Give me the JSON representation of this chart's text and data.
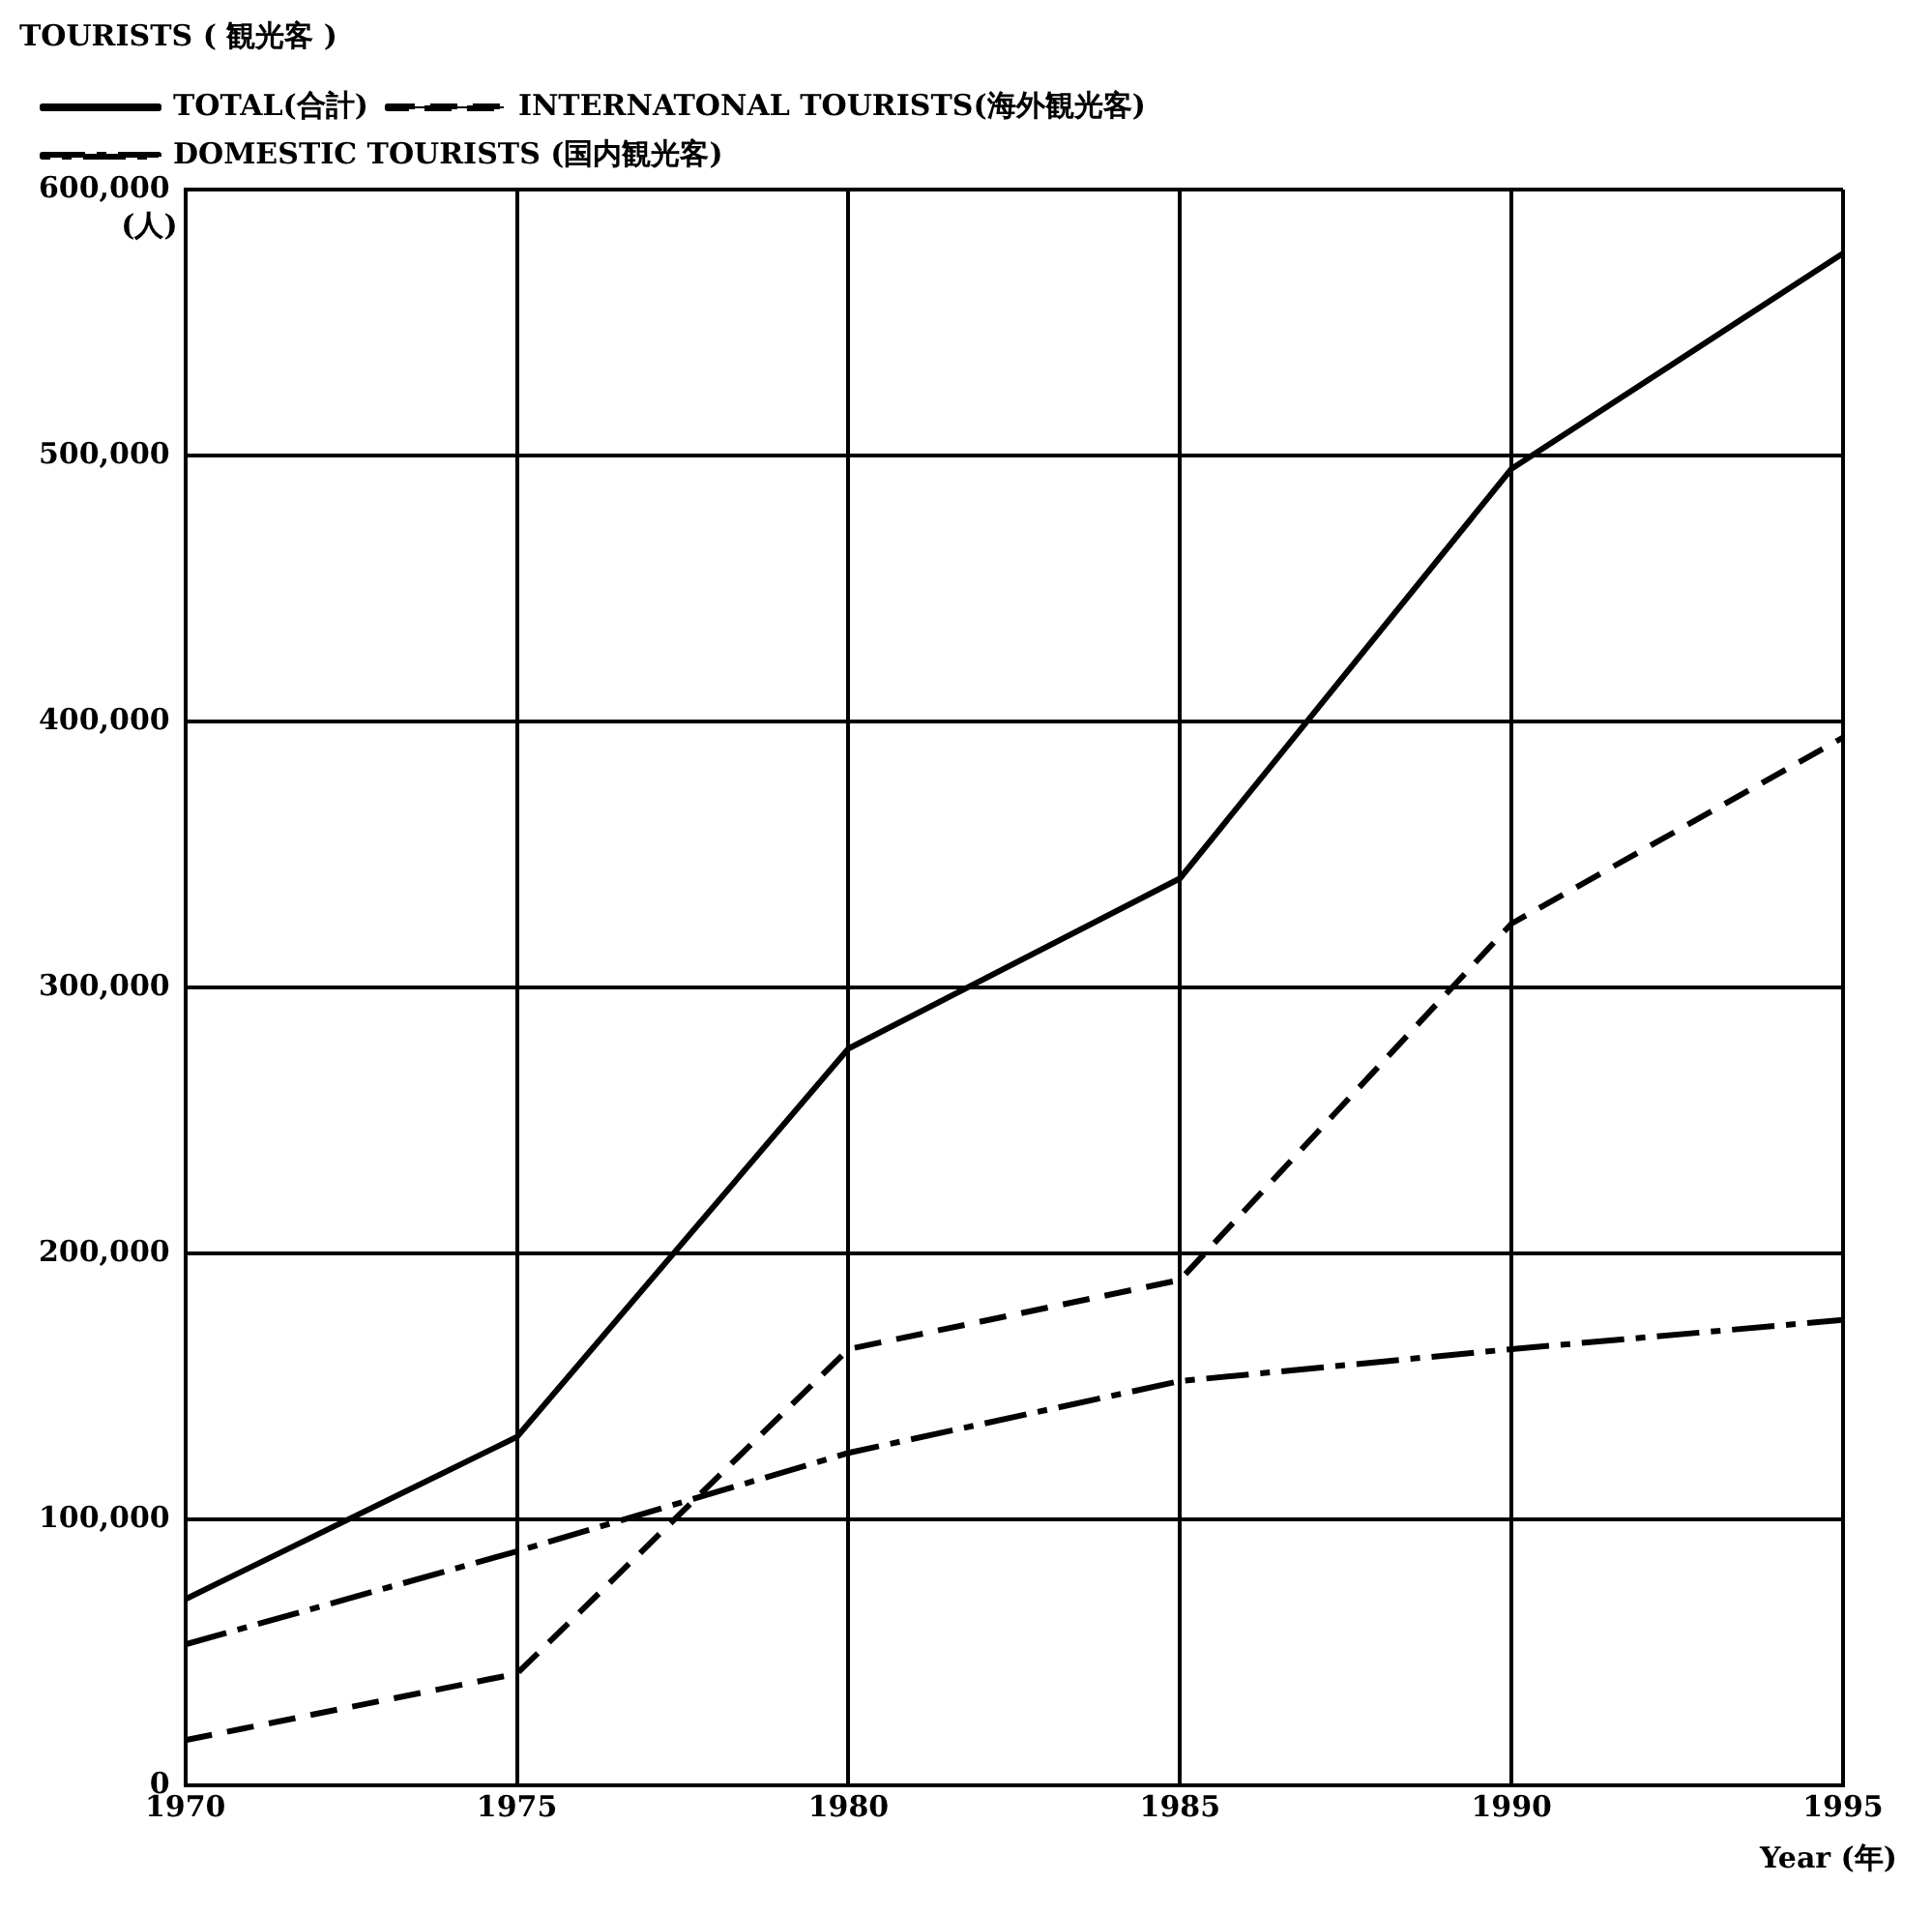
{
  "chart_data": {
    "type": "line",
    "ylabel": "TOURISTS ( 観光客 )",
    "xlabel": "Year (年)",
    "annotations": [
      "(人)"
    ],
    "x": [
      1970,
      1975,
      1980,
      1985,
      1990,
      1995
    ],
    "series": [
      {
        "name": "TOTAL(合計)",
        "color": "#000000",
        "line_style": "solid",
        "values": [
          70000,
          131000,
          277000,
          341000,
          495000,
          576000
        ]
      },
      {
        "name": "INTERNATONAL TOURISTS(海外観光客)",
        "color": "#000000",
        "line_style": "dashed",
        "values": [
          17000,
          42000,
          164000,
          190000,
          324000,
          394000
        ]
      },
      {
        "name": "DOMESTIC TOURISTS (国内観光客)",
        "color": "#000000",
        "line_style": "dashdot",
        "values": [
          53000,
          88000,
          125000,
          152000,
          164000,
          175000
        ]
      }
    ],
    "xlim": [
      1970,
      1995
    ],
    "xticks": [
      1970,
      1975,
      1980,
      1985,
      1990,
      1995
    ],
    "ylim": [
      0,
      600000
    ],
    "yticks": [
      0,
      {
        "value": 100000,
        "label": "100,000"
      },
      {
        "value": 200000,
        "label": "200,000"
      },
      {
        "value": 300000,
        "label": "300,000"
      },
      {
        "value": 400000,
        "label": "400,000"
      },
      {
        "value": 500000,
        "label": "500,000"
      },
      {
        "value": 600000,
        "label": "600,000"
      }
    ],
    "grid": true,
    "legend": "top left",
    "marker": "none"
  }
}
